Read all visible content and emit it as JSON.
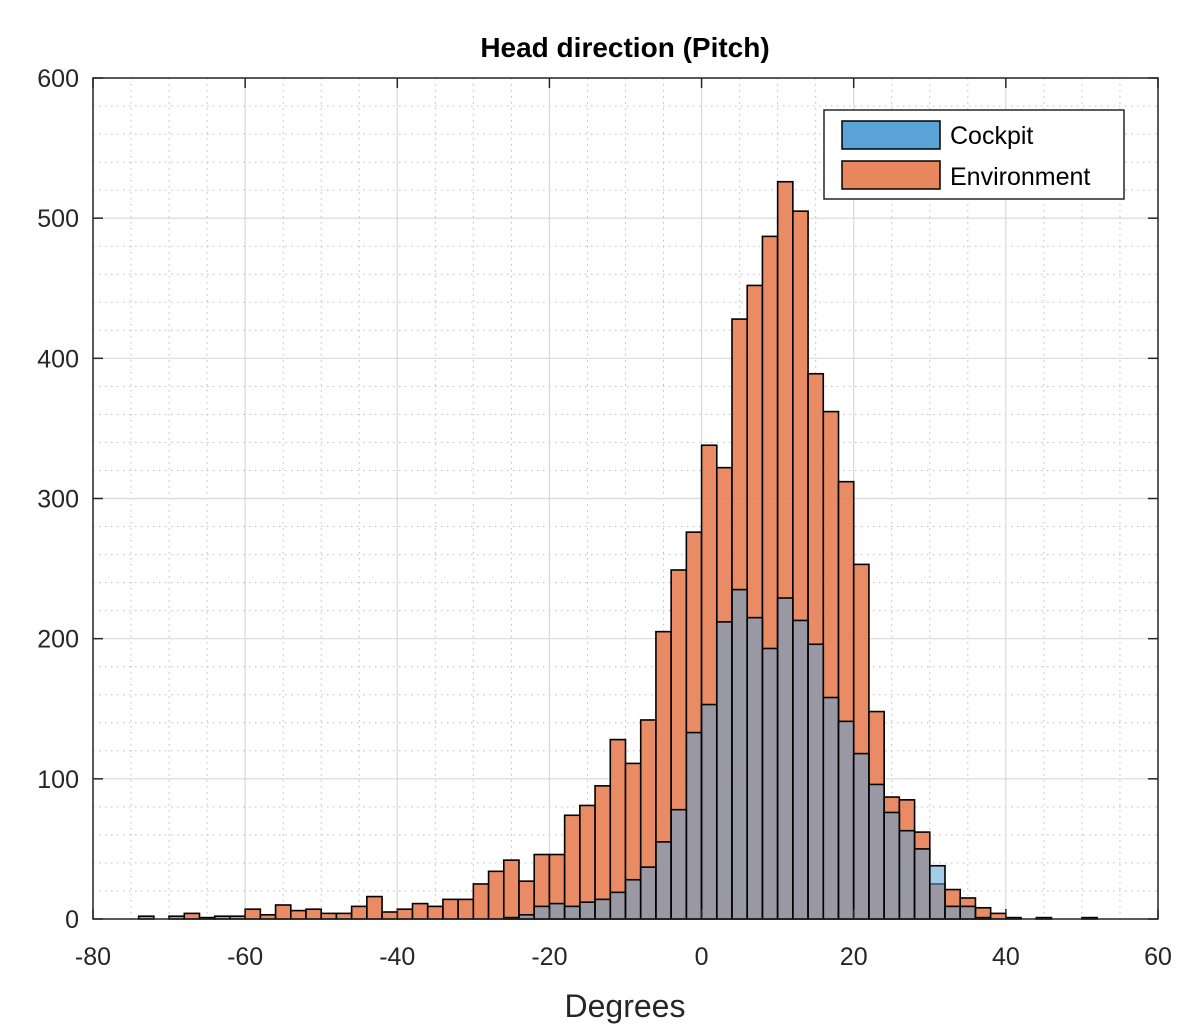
{
  "chart_data": {
    "type": "bar",
    "title": "Head direction (Pitch)",
    "xlabel": "Degrees",
    "ylabel": "",
    "xlim": [
      -80,
      60
    ],
    "ylim": [
      0,
      600
    ],
    "xticks": [
      -80,
      -60,
      -40,
      -20,
      0,
      20,
      40,
      60
    ],
    "yticks": [
      0,
      100,
      200,
      300,
      400,
      500,
      600
    ],
    "grid": true,
    "minor_grid": true,
    "legend": {
      "position": "top-right"
    },
    "bin_width": 2,
    "bin_starts": [
      -76,
      -74,
      -72,
      -70,
      -68,
      -66,
      -64,
      -62,
      -60,
      -58,
      -56,
      -54,
      -52,
      -50,
      -48,
      -46,
      -44,
      -42,
      -40,
      -38,
      -36,
      -34,
      -32,
      -30,
      -28,
      -26,
      -24,
      -22,
      -20,
      -18,
      -16,
      -14,
      -12,
      -10,
      -8,
      -6,
      -4,
      -2,
      0,
      2,
      4,
      6,
      8,
      10,
      12,
      14,
      16,
      18,
      20,
      22,
      24,
      26,
      28,
      30,
      32,
      34,
      36,
      38,
      40,
      42,
      44,
      46,
      48,
      50,
      52,
      54
    ],
    "series": [
      {
        "name": "Cockpit",
        "color": "#5aa3d6",
        "values": [
          0,
          0,
          0,
          0,
          0,
          0,
          0,
          0,
          0,
          0,
          0,
          0,
          0,
          0,
          0,
          0,
          0,
          0,
          0,
          0,
          0,
          0,
          0,
          0,
          0,
          1,
          3,
          9,
          11,
          9,
          12,
          14,
          19,
          28,
          37,
          55,
          78,
          133,
          153,
          212,
          235,
          215,
          193,
          229,
          213,
          196,
          158,
          141,
          118,
          96,
          76,
          63,
          50,
          38,
          9,
          9,
          1,
          0,
          0,
          0,
          0,
          0,
          0,
          0,
          0,
          0
        ]
      },
      {
        "name": "Environment",
        "color": "#e8865d",
        "values": [
          0,
          2,
          0,
          2,
          4,
          1,
          2,
          2,
          7,
          3,
          10,
          6,
          7,
          4,
          4,
          9,
          16,
          5,
          7,
          11,
          9,
          14,
          14,
          25,
          34,
          42,
          27,
          46,
          46,
          74,
          81,
          95,
          128,
          111,
          142,
          205,
          249,
          276,
          338,
          322,
          428,
          452,
          487,
          526,
          505,
          389,
          362,
          312,
          253,
          148,
          87,
          85,
          62,
          25,
          21,
          15,
          8,
          4,
          1,
          0,
          1,
          0,
          0,
          1,
          0,
          0
        ]
      }
    ]
  }
}
